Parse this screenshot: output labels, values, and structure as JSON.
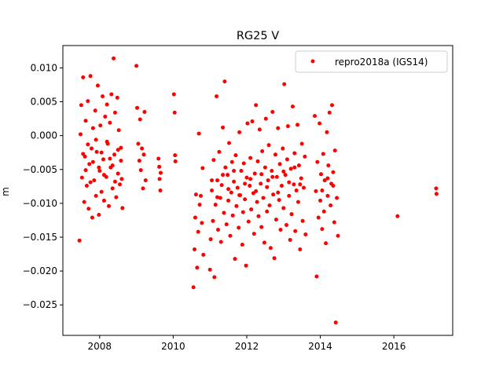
{
  "chart_data": {
    "type": "scatter",
    "title": "RG25 V",
    "xlabel": "",
    "ylabel": "m",
    "xlim": [
      2007.0,
      2017.6
    ],
    "ylim": [
      -0.0295,
      0.0133
    ],
    "x_ticks": [
      2008,
      2010,
      2012,
      2014,
      2016
    ],
    "x_tick_labels": [
      "2008",
      "2010",
      "2012",
      "2014",
      "2016"
    ],
    "y_ticks": [
      0.01,
      0.005,
      0.0,
      -0.005,
      -0.01,
      -0.015,
      -0.02,
      -0.025
    ],
    "y_tick_labels": [
      "0.010",
      "0.005",
      "0.000",
      "−0.005",
      "−0.010",
      "−0.015",
      "−0.020",
      "−0.025"
    ],
    "grid": false,
    "legend_position": "top-right",
    "series": [
      {
        "name": "repro2018a (IGS14)",
        "color": "#ff0000",
        "marker": "circle",
        "points": [
          [
            2007.45,
            -0.0155
          ],
          [
            2007.48,
            0.0002
          ],
          [
            2007.5,
            0.0045
          ],
          [
            2007.52,
            -0.0062
          ],
          [
            2007.55,
            0.0086
          ],
          [
            2007.58,
            -0.0098
          ],
          [
            2007.6,
            -0.0031
          ],
          [
            2007.62,
            0.0022
          ],
          [
            2007.65,
            -0.0074
          ],
          [
            2007.68,
            0.0051
          ],
          [
            2007.7,
            -0.0108
          ],
          [
            2007.72,
            -0.0042
          ],
          [
            2007.75,
            0.0088
          ],
          [
            2007.78,
            -0.0019
          ],
          [
            2007.8,
            -0.0121
          ],
          [
            2007.82,
            0.0011
          ],
          [
            2007.85,
            -0.0066
          ],
          [
            2007.88,
            0.0037
          ],
          [
            2007.9,
            -0.0089
          ],
          [
            2007.92,
            -0.0024
          ],
          [
            2007.95,
            0.0074
          ],
          [
            2007.98,
            -0.0117
          ],
          [
            2008.0,
            -0.0052
          ],
          [
            2008.02,
            0.0015
          ],
          [
            2008.05,
            -0.0083
          ],
          [
            2008.08,
            0.0058
          ],
          [
            2008.1,
            -0.0035
          ],
          [
            2008.12,
            -0.0096
          ],
          [
            2008.15,
            0.0028
          ],
          [
            2008.18,
            -0.0061
          ],
          [
            2008.2,
            0.0046
          ],
          [
            2008.22,
            -0.0012
          ],
          [
            2008.25,
            -0.0104
          ],
          [
            2008.28,
            0.0019
          ],
          [
            2008.3,
            -0.0047
          ],
          [
            2008.32,
            0.0061
          ],
          [
            2008.35,
            -0.0078
          ],
          [
            2008.38,
            0.0114
          ],
          [
            2008.4,
            -0.0028
          ],
          [
            2008.42,
            0.0034
          ],
          [
            2008.45,
            -0.0091
          ],
          [
            2008.48,
            0.0056
          ],
          [
            2008.5,
            -0.0056
          ],
          [
            2008.52,
            0.0008
          ],
          [
            2008.55,
            -0.0072
          ],
          [
            2008.58,
            -0.0018
          ],
          [
            2008.6,
            -0.0064
          ],
          [
            2008.62,
            -0.0107
          ],
          [
            2007.55,
            -0.0027
          ],
          [
            2007.62,
            -0.0051
          ],
          [
            2007.68,
            -0.0013
          ],
          [
            2007.75,
            -0.0069
          ],
          [
            2007.82,
            -0.0039
          ],
          [
            2007.9,
            -0.0006
          ],
          [
            2007.98,
            -0.0047
          ],
          [
            2008.05,
            -0.0025
          ],
          [
            2008.12,
            -0.0058
          ],
          [
            2008.2,
            -0.0009
          ],
          [
            2008.28,
            -0.0034
          ],
          [
            2008.35,
            -0.0044
          ],
          [
            2008.42,
            -0.0068
          ],
          [
            2008.5,
            -0.0021
          ],
          [
            2008.58,
            -0.0037
          ],
          [
            2009.0,
            0.0103
          ],
          [
            2009.02,
            0.0041
          ],
          [
            2009.05,
            -0.0012
          ],
          [
            2009.08,
            -0.0037
          ],
          [
            2009.1,
            0.0024
          ],
          [
            2009.12,
            -0.0051
          ],
          [
            2009.15,
            -0.0019
          ],
          [
            2009.18,
            -0.0078
          ],
          [
            2009.2,
            -0.0028
          ],
          [
            2009.22,
            0.0035
          ],
          [
            2009.25,
            -0.0066
          ],
          [
            2009.6,
            -0.0034
          ],
          [
            2009.62,
            -0.0046
          ],
          [
            2009.63,
            -0.0064
          ],
          [
            2009.65,
            -0.0081
          ],
          [
            2009.66,
            -0.0055
          ],
          [
            2010.02,
            0.0061
          ],
          [
            2010.04,
            0.0034
          ],
          [
            2010.05,
            -0.0029
          ],
          [
            2010.06,
            -0.0038
          ],
          [
            2010.55,
            -0.0224
          ],
          [
            2010.58,
            -0.0168
          ],
          [
            2010.6,
            -0.0121
          ],
          [
            2010.62,
            -0.0087
          ],
          [
            2010.65,
            -0.0195
          ],
          [
            2010.68,
            -0.0142
          ],
          [
            2010.7,
            0.0003
          ],
          [
            2010.72,
            -0.0102
          ],
          [
            2010.75,
            -0.0089
          ],
          [
            2010.78,
            -0.0129
          ],
          [
            2010.8,
            -0.0048
          ],
          [
            2010.82,
            -0.0176
          ],
          [
            2011.0,
            -0.0198
          ],
          [
            2011.02,
            -0.0153
          ],
          [
            2011.05,
            -0.0081
          ],
          [
            2011.08,
            -0.0126
          ],
          [
            2011.1,
            -0.0036
          ],
          [
            2011.12,
            -0.0209
          ],
          [
            2011.15,
            -0.0102
          ],
          [
            2011.18,
            0.0058
          ],
          [
            2011.2,
            -0.0066
          ],
          [
            2011.22,
            -0.0139
          ],
          [
            2011.25,
            -0.0024
          ],
          [
            2011.28,
            -0.0092
          ],
          [
            2011.3,
            -0.0157
          ],
          [
            2011.32,
            -0.0073
          ],
          [
            2011.35,
            0.0012
          ],
          [
            2011.38,
            -0.0114
          ],
          [
            2011.4,
            0.008
          ],
          [
            2011.42,
            -0.0047
          ],
          [
            2011.45,
            -0.0131
          ],
          [
            2011.48,
            -0.0058
          ],
          [
            2011.5,
            -0.0096
          ],
          [
            2011.52,
            -0.0011
          ],
          [
            2011.55,
            -0.0148
          ],
          [
            2011.58,
            -0.0084
          ],
          [
            2011.6,
            -0.0039
          ],
          [
            2011.62,
            -0.0118
          ],
          [
            2011.65,
            -0.0068
          ],
          [
            2011.68,
            -0.0182
          ],
          [
            2011.7,
            -0.0029
          ],
          [
            2011.72,
            -0.0104
          ],
          [
            2011.75,
            -0.0077
          ],
          [
            2011.78,
            -0.0136
          ],
          [
            2011.8,
            0.0005
          ],
          [
            2011.82,
            -0.0088
          ],
          [
            2011.85,
            -0.0052
          ],
          [
            2011.88,
            -0.0161
          ],
          [
            2011.9,
            -0.0113
          ],
          [
            2011.92,
            -0.0041
          ],
          [
            2011.95,
            -0.0094
          ],
          [
            2011.98,
            -0.0192
          ],
          [
            2012.0,
            -0.0062
          ],
          [
            2012.02,
            0.0018
          ],
          [
            2012.05,
            -0.0127
          ],
          [
            2012.08,
            -0.0074
          ],
          [
            2012.1,
            -0.0033
          ],
          [
            2012.12,
            -0.0109
          ],
          [
            2012.15,
            0.0021
          ],
          [
            2012.18,
            -0.0085
          ],
          [
            2012.2,
            -0.0145
          ],
          [
            2012.22,
            -0.0056
          ],
          [
            2012.25,
            0.0045
          ],
          [
            2012.28,
            -0.0098
          ],
          [
            2012.3,
            -0.0038
          ],
          [
            2012.32,
            -0.0119
          ],
          [
            2012.35,
            0.0009
          ],
          [
            2012.38,
            -0.0071
          ],
          [
            2012.4,
            -0.0135
          ],
          [
            2012.42,
            -0.0023
          ],
          [
            2012.45,
            -0.0092
          ],
          [
            2012.48,
            -0.0158
          ],
          [
            2012.5,
            -0.0047
          ],
          [
            2012.52,
            0.0025
          ],
          [
            2012.55,
            -0.0112
          ],
          [
            2012.58,
            -0.0066
          ],
          [
            2012.6,
            -0.0014
          ],
          [
            2012.62,
            -0.0103
          ],
          [
            2012.65,
            -0.0166
          ],
          [
            2012.68,
            -0.0052
          ],
          [
            2012.7,
            0.0035
          ],
          [
            2012.72,
            -0.0087
          ],
          [
            2012.75,
            -0.0181
          ],
          [
            2012.78,
            -0.0028
          ],
          [
            2012.8,
            -0.0124
          ],
          [
            2012.82,
            -0.0061
          ],
          [
            2012.85,
            0.0011
          ],
          [
            2012.88,
            -0.0095
          ],
          [
            2012.9,
            -0.0042
          ],
          [
            2012.92,
            -0.0139
          ],
          [
            2012.95,
            -0.0074
          ],
          [
            2012.98,
            -0.0019
          ],
          [
            2013.0,
            -0.0107
          ],
          [
            2013.02,
            0.0076
          ],
          [
            2013.05,
            -0.0058
          ],
          [
            2013.08,
            -0.0132
          ],
          [
            2013.1,
            -0.0035
          ],
          [
            2013.12,
            0.0014
          ],
          [
            2013.15,
            -0.0089
          ],
          [
            2013.18,
            -0.0154
          ],
          [
            2013.2,
            -0.0049
          ],
          [
            2013.22,
            -0.0116
          ],
          [
            2013.25,
            0.0043
          ],
          [
            2013.28,
            -0.0072
          ],
          [
            2013.3,
            -0.0026
          ],
          [
            2013.32,
            -0.0141
          ],
          [
            2013.35,
            -0.0081
          ],
          [
            2013.38,
            0.0016
          ],
          [
            2013.4,
            -0.0098
          ],
          [
            2013.42,
            -0.0044
          ],
          [
            2013.45,
            -0.0168
          ],
          [
            2013.48,
            -0.0063
          ],
          [
            2013.5,
            -0.0012
          ],
          [
            2013.52,
            -0.0126
          ],
          [
            2013.55,
            -0.0077
          ],
          [
            2013.58,
            -0.0031
          ],
          [
            2013.6,
            -0.0146
          ],
          [
            2013.85,
            0.0029
          ],
          [
            2013.88,
            -0.0082
          ],
          [
            2013.9,
            -0.0208
          ],
          [
            2013.92,
            -0.0039
          ],
          [
            2013.95,
            -0.0121
          ],
          [
            2013.98,
            0.0018
          ],
          [
            2014.0,
            -0.0096
          ],
          [
            2014.02,
            -0.0057
          ],
          [
            2014.05,
            -0.0138
          ],
          [
            2014.08,
            -0.0027
          ],
          [
            2014.1,
            -0.0112
          ],
          [
            2014.12,
            -0.0066
          ],
          [
            2014.15,
            -0.0159
          ],
          [
            2014.18,
            0.0005
          ],
          [
            2014.2,
            -0.0089
          ],
          [
            2014.22,
            -0.0044
          ],
          [
            2014.25,
            0.0034
          ],
          [
            2014.28,
            -0.0103
          ],
          [
            2014.3,
            -0.0071
          ],
          [
            2014.32,
            0.0045
          ],
          [
            2014.35,
            -0.0054
          ],
          [
            2014.38,
            -0.0128
          ],
          [
            2014.4,
            -0.0022
          ],
          [
            2014.42,
            -0.0276
          ],
          [
            2014.45,
            -0.0092
          ],
          [
            2014.48,
            -0.0148
          ],
          [
            2011.05,
            -0.0066
          ],
          [
            2011.2,
            -0.0091
          ],
          [
            2011.35,
            -0.0058
          ],
          [
            2011.5,
            -0.0079
          ],
          [
            2011.65,
            -0.0052
          ],
          [
            2011.8,
            -0.0088
          ],
          [
            2011.95,
            -0.0071
          ],
          [
            2012.1,
            -0.0064
          ],
          [
            2012.25,
            -0.0082
          ],
          [
            2012.4,
            -0.0057
          ],
          [
            2012.55,
            -0.0076
          ],
          [
            2012.7,
            -0.0061
          ],
          [
            2012.85,
            -0.0084
          ],
          [
            2013.0,
            -0.0053
          ],
          [
            2013.15,
            -0.0069
          ],
          [
            2013.3,
            -0.0047
          ],
          [
            2013.45,
            -0.0072
          ],
          [
            2014.05,
            -0.0081
          ],
          [
            2014.2,
            -0.0063
          ],
          [
            2014.35,
            -0.0074
          ],
          [
            2016.1,
            -0.0119
          ],
          [
            2017.15,
            -0.0078
          ],
          [
            2017.16,
            -0.0086
          ]
        ]
      }
    ]
  }
}
